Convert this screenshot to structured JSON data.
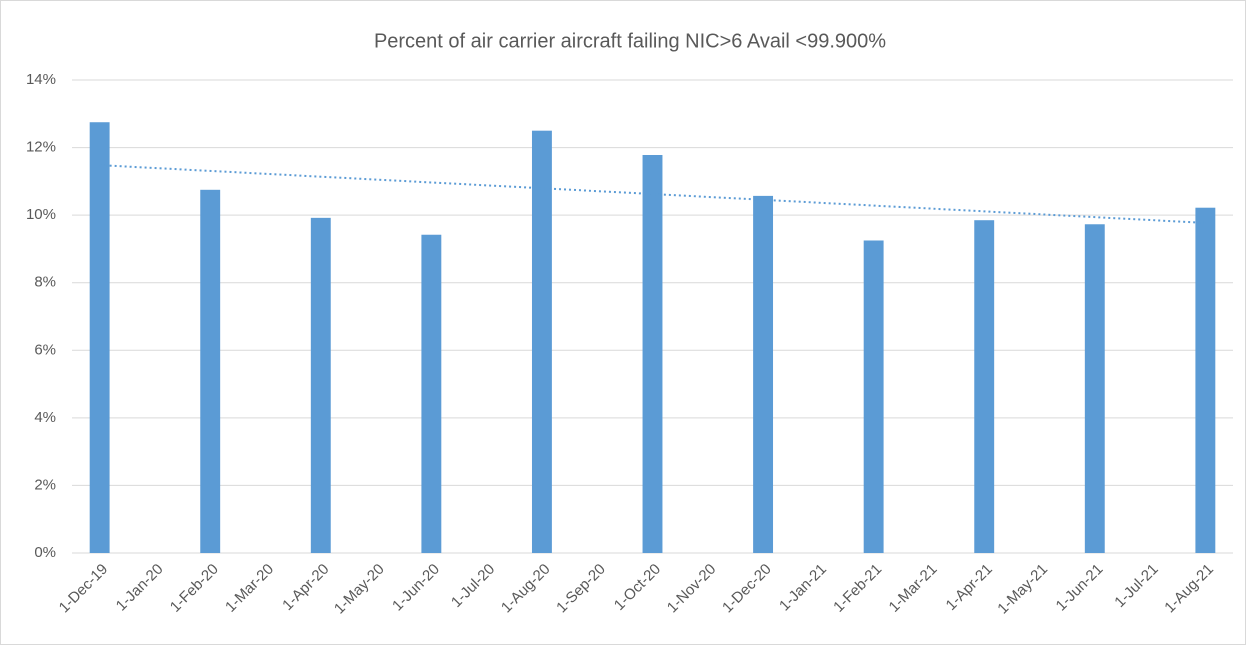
{
  "chart_data": {
    "type": "bar",
    "title": "Percent of air carrier aircraft failing NIC>6  Avail <99.900%",
    "categories": [
      "1-Dec-19",
      "1-Jan-20",
      "1-Feb-20",
      "1-Mar-20",
      "1-Apr-20",
      "1-May-20",
      "1-Jun-20",
      "1-Jul-20",
      "1-Aug-20",
      "1-Sep-20",
      "1-Oct-20",
      "1-Nov-20",
      "1-Dec-20",
      "1-Jan-21",
      "1-Feb-21",
      "1-Mar-21",
      "1-Apr-21",
      "1-May-21",
      "1-Jun-21",
      "1-Jul-21",
      "1-Aug-21"
    ],
    "values": [
      12.75,
      null,
      10.75,
      null,
      9.92,
      null,
      9.42,
      null,
      12.5,
      null,
      11.78,
      null,
      10.57,
      null,
      9.25,
      null,
      9.85,
      null,
      9.73,
      null,
      10.22
    ],
    "color": "#5b9bd5",
    "trendline": {
      "color": "#5b9bd5",
      "values": [
        11.48,
        9.77
      ]
    },
    "ylim": [
      0,
      14
    ],
    "yticks": [
      {
        "value": 0,
        "label": "0%"
      },
      {
        "value": 2,
        "label": "2%"
      },
      {
        "value": 4,
        "label": "4%"
      },
      {
        "value": 6,
        "label": "6%"
      },
      {
        "value": 8,
        "label": "8%"
      },
      {
        "value": 10,
        "label": "10%"
      },
      {
        "value": 12,
        "label": "12%"
      },
      {
        "value": 14,
        "label": "14%"
      }
    ],
    "grid": true
  }
}
